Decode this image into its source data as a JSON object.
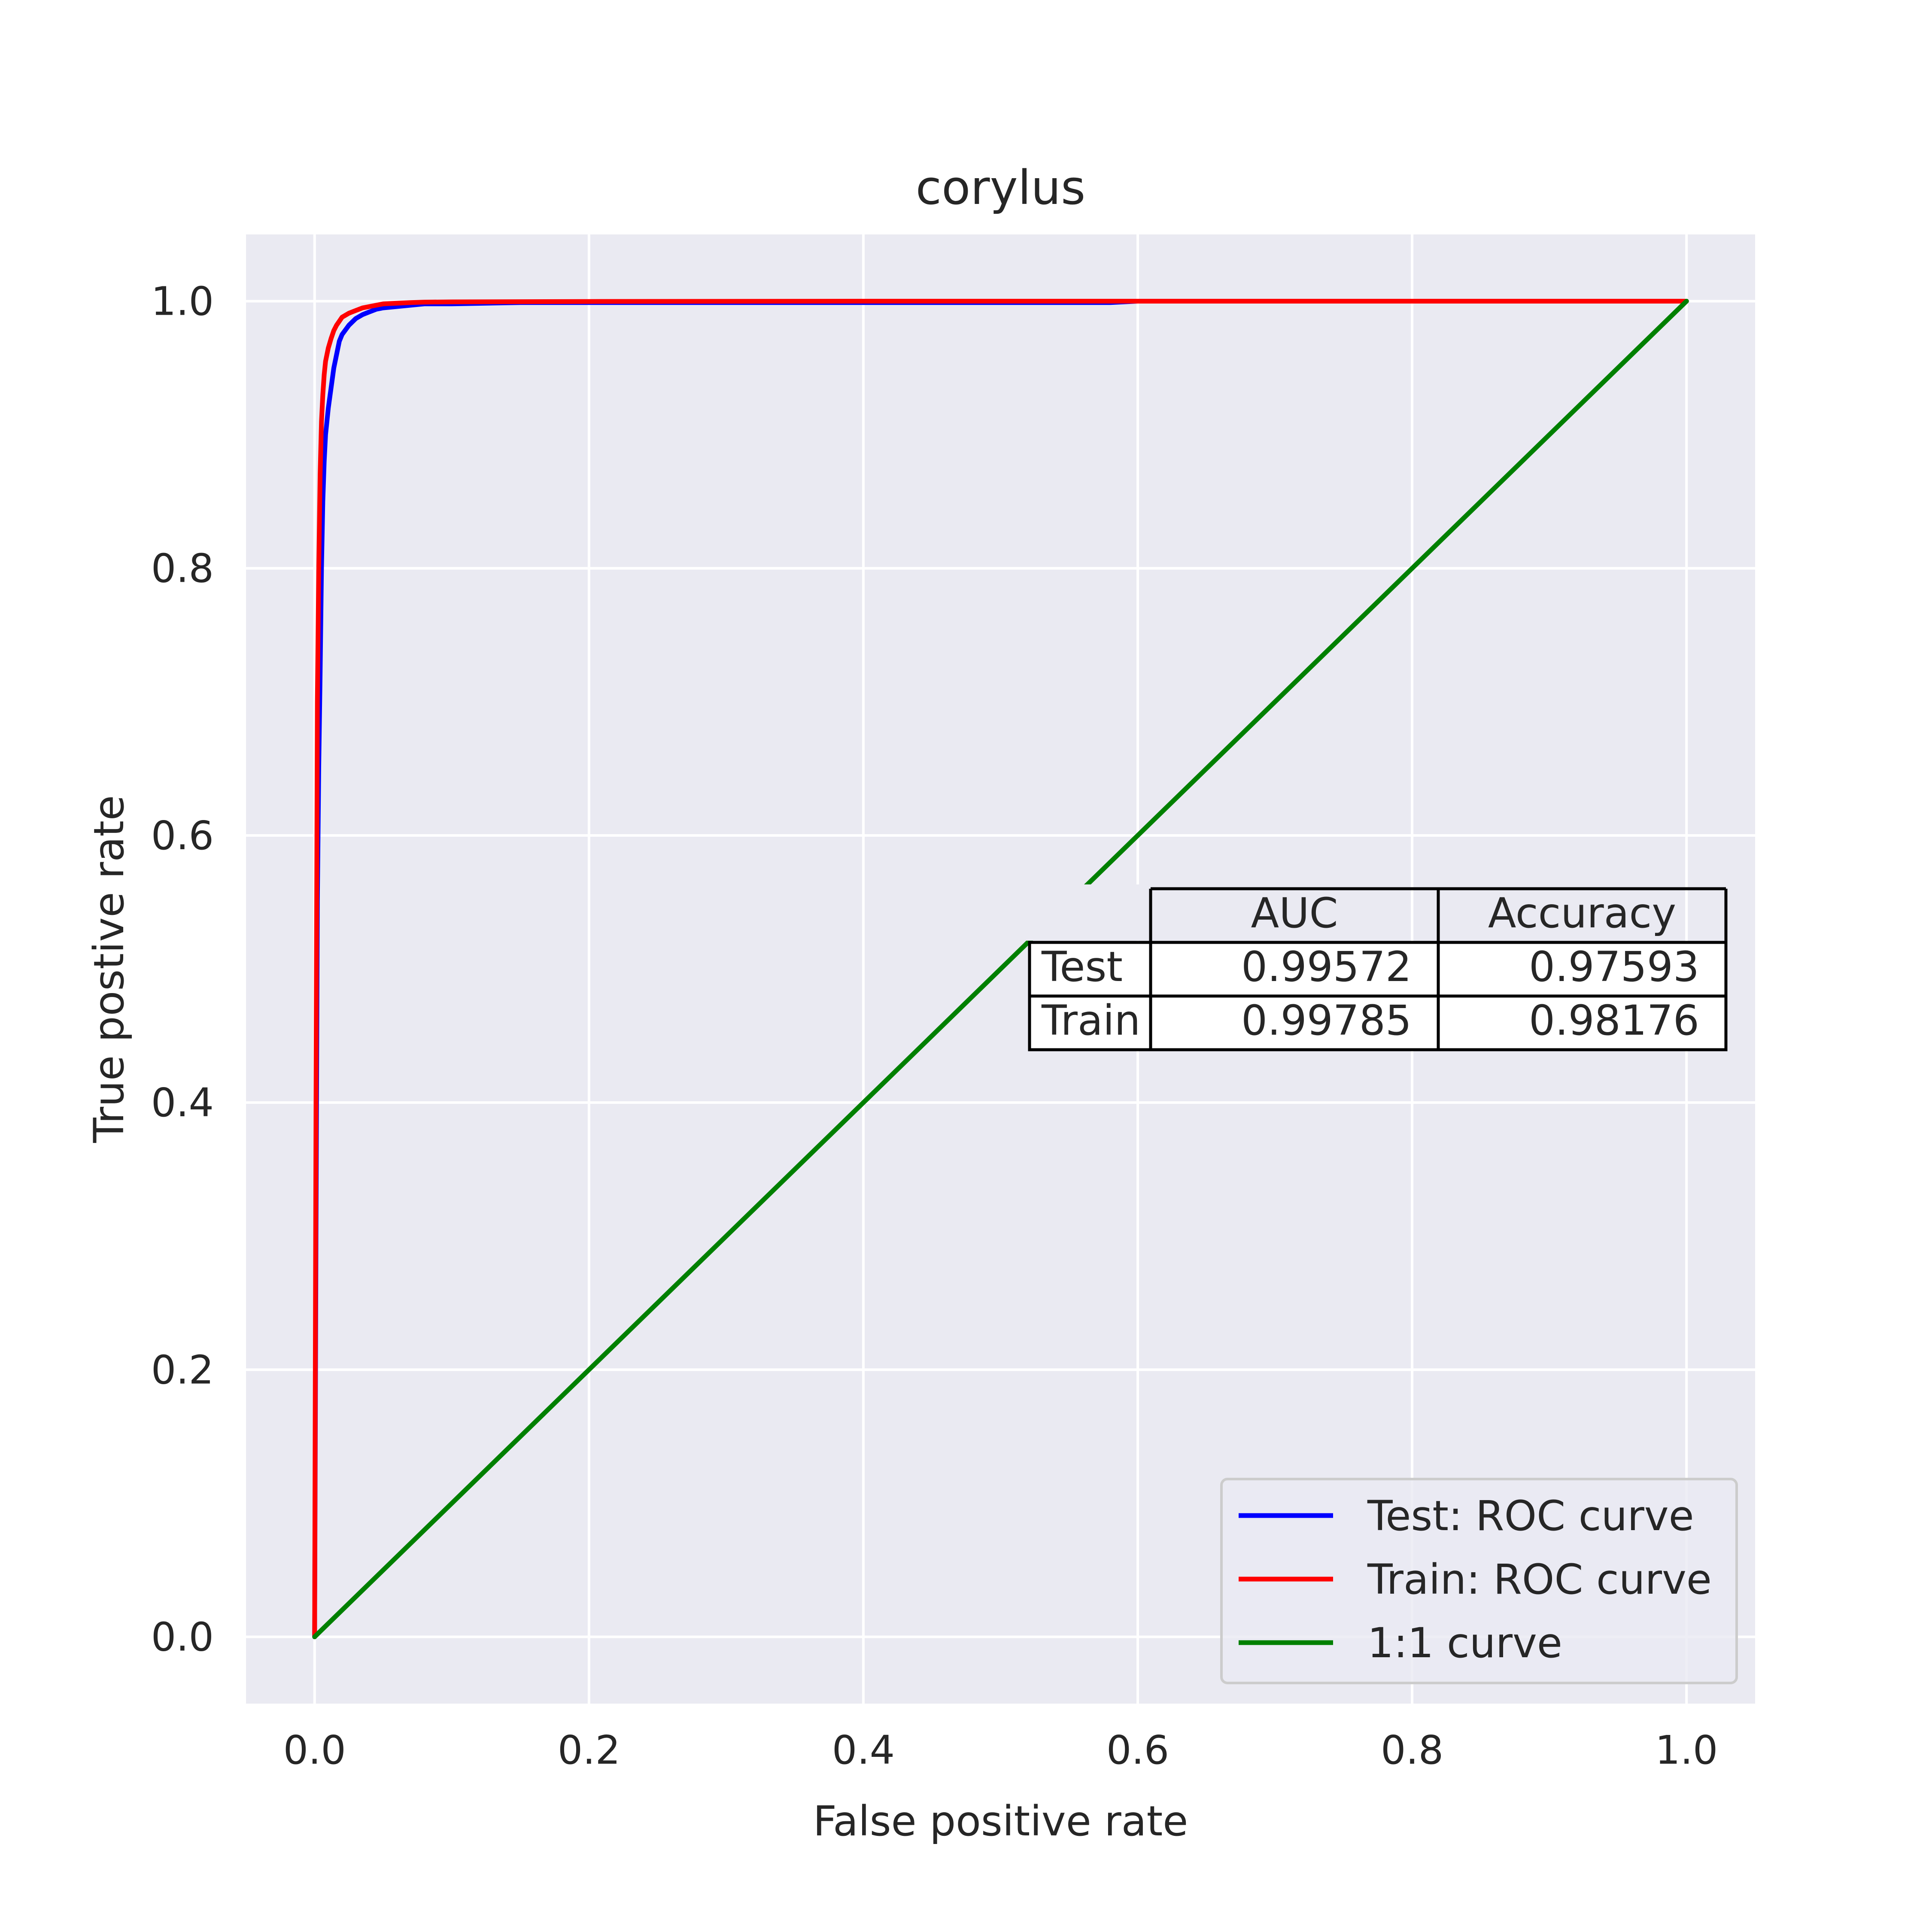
{
  "chart_data": {
    "type": "line",
    "title": "corylus",
    "xlabel": "False positive rate",
    "ylabel": "True postive rate",
    "xlim": [
      -0.05,
      1.05
    ],
    "ylim": [
      -0.05,
      1.05
    ],
    "xticks": [
      "0.0",
      "0.2",
      "0.4",
      "0.6",
      "0.8",
      "1.0"
    ],
    "yticks": [
      "0.0",
      "0.2",
      "0.4",
      "0.6",
      "0.8",
      "1.0"
    ],
    "grid": true,
    "background": "#eaeaf2",
    "legend_position": "lower-right",
    "series": [
      {
        "name": "Test: ROC curve",
        "color": "#0000ff",
        "x": [
          0,
          0.001,
          0.002,
          0.003,
          0.004,
          0.005,
          0.006,
          0.007,
          0.008,
          0.01,
          0.012,
          0.014,
          0.016,
          0.018,
          0.02,
          0.025,
          0.03,
          0.035,
          0.04,
          0.045,
          0.05,
          0.06,
          0.07,
          0.08,
          0.1,
          0.15,
          0.2,
          0.3,
          0.4,
          0.5,
          0.58,
          0.6,
          0.8,
          1.0
        ],
        "y": [
          0,
          0.3,
          0.55,
          0.65,
          0.72,
          0.8,
          0.85,
          0.88,
          0.9,
          0.92,
          0.935,
          0.95,
          0.96,
          0.97,
          0.975,
          0.982,
          0.987,
          0.99,
          0.992,
          0.994,
          0.995,
          0.996,
          0.997,
          0.998,
          0.998,
          0.999,
          0.999,
          0.999,
          0.999,
          0.999,
          0.999,
          1.0,
          1.0,
          1.0
        ]
      },
      {
        "name": "Train: ROC curve",
        "color": "#ff0000",
        "x": [
          0,
          0.001,
          0.002,
          0.003,
          0.004,
          0.005,
          0.006,
          0.007,
          0.008,
          0.01,
          0.012,
          0.014,
          0.016,
          0.018,
          0.02,
          0.025,
          0.03,
          0.035,
          0.04,
          0.045,
          0.05,
          0.06,
          0.07,
          0.08,
          0.1,
          0.2,
          0.4,
          0.6,
          0.8,
          1.0
        ],
        "y": [
          0,
          0.4,
          0.7,
          0.8,
          0.87,
          0.91,
          0.93,
          0.945,
          0.955,
          0.965,
          0.972,
          0.978,
          0.982,
          0.985,
          0.988,
          0.991,
          0.993,
          0.995,
          0.996,
          0.997,
          0.998,
          0.9985,
          0.999,
          0.9993,
          0.9995,
          0.9998,
          1.0,
          1.0,
          1.0,
          1.0
        ]
      },
      {
        "name": "1:1 curve",
        "color": "#008000",
        "x": [
          0,
          1
        ],
        "y": [
          0,
          1
        ]
      }
    ],
    "table": {
      "columns": [
        "AUC",
        "Accuracy"
      ],
      "rows": [
        {
          "label": "Test",
          "values": [
            "0.99572",
            "0.97593"
          ]
        },
        {
          "label": "Train",
          "values": [
            "0.99785",
            "0.98176"
          ]
        }
      ]
    }
  }
}
